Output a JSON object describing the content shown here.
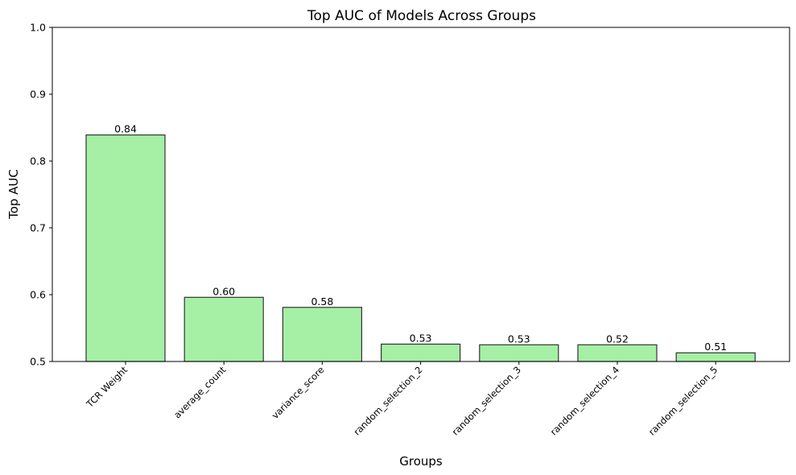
{
  "chart_data": {
    "type": "bar",
    "title": "Top AUC of Models Across Groups",
    "xlabel": "Groups",
    "ylabel": "Top AUC",
    "ylim": [
      0.5,
      1.0
    ],
    "yticks": [
      "0.5",
      "0.6",
      "0.7",
      "0.8",
      "0.9",
      "1.0"
    ],
    "categories": [
      "TCR Weight",
      "average_count",
      "variance_score",
      "random_selection_2",
      "random_selection_3",
      "random_selection_4",
      "random_selection_5"
    ],
    "values": [
      0.839,
      0.596,
      0.581,
      0.526,
      0.525,
      0.525,
      0.513
    ],
    "value_labels": [
      "0.84",
      "0.60",
      "0.58",
      "0.53",
      "0.53",
      "0.52",
      "0.51"
    ],
    "bar_color": "#a6f0a6",
    "edge_color": "#333333",
    "grid": false,
    "legend": "none"
  }
}
